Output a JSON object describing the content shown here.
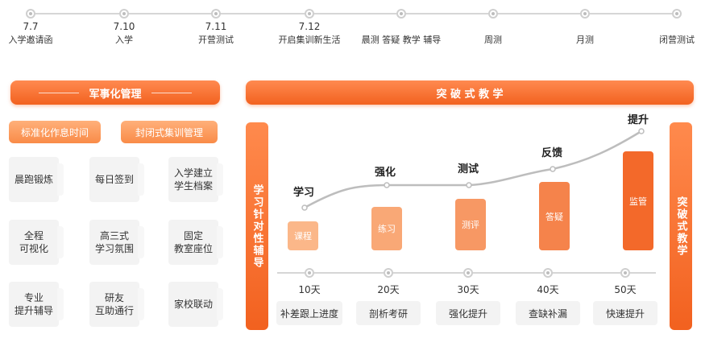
{
  "timeline": [
    {
      "date": "7.7",
      "label": "入学邀请函"
    },
    {
      "date": "7.10",
      "label": "入学"
    },
    {
      "date": "7.11",
      "label": "开营测试"
    },
    {
      "date": "7.12",
      "label": "开启集训新生活"
    },
    {
      "date": "",
      "label": "晨测 答疑 教学 辅导"
    },
    {
      "date": "",
      "label": "周测"
    },
    {
      "date": "",
      "label": "月测"
    },
    {
      "date": "",
      "label": "闭营测试"
    }
  ],
  "left_panel": {
    "title": "军事化管理",
    "pills": [
      "标准化作息时间",
      "封闭式集训管理"
    ],
    "cards": [
      "晨跑锻炼",
      "每日签到",
      "入学建立\n学生档案",
      "全程\n可视化",
      "高三式\n学习氛围",
      "固定\n教室座位",
      "专业\n提升辅导",
      "研友\n互助通行",
      "家校联动"
    ]
  },
  "right_panel": {
    "title": "突 破 式 教 学",
    "left_column": "学习针对性辅导",
    "right_column": "突破式教学",
    "stages": [
      {
        "label": "学习",
        "bar": "课程",
        "day": "10天",
        "step": "补差跟上进度"
      },
      {
        "label": "强化",
        "bar": "练习",
        "day": "20天",
        "step": "剖析考研"
      },
      {
        "label": "测试",
        "bar": "测评",
        "day": "30天",
        "step": "强化提升"
      },
      {
        "label": "反馈",
        "bar": "答疑",
        "day": "40天",
        "step": "查缺补漏"
      },
      {
        "label": "提升",
        "bar": "监管",
        "day": "50天",
        "step": "快速提升"
      }
    ]
  },
  "colors": {
    "accent": "#f2611f",
    "accent_light": "#ffb07a",
    "card_bg": "#f3f3f3",
    "line": "#d6d6d6"
  }
}
